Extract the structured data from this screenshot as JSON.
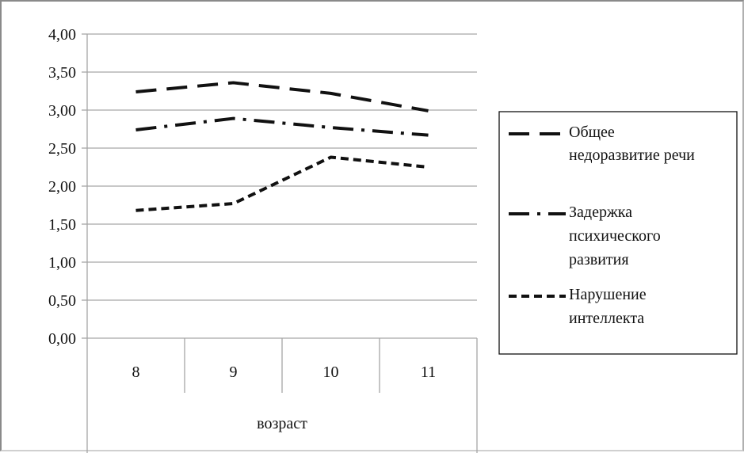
{
  "chart_data": {
    "type": "line",
    "x_categories": [
      "8",
      "9",
      "10",
      "11"
    ],
    "xlabel": "возраст",
    "ylabel": "",
    "ylim": [
      0,
      4
    ],
    "y_ticks": [
      "0,00",
      "0,50",
      "1,00",
      "1,50",
      "2,00",
      "2,50",
      "3,00",
      "3,50",
      "4,00"
    ],
    "grid": "horizontal",
    "legend_position": "right",
    "series": [
      {
        "name_lines": [
          "Общее",
          "недоразвитие речи"
        ],
        "values": [
          3.24,
          3.36,
          3.22,
          2.99
        ],
        "dash": "long-dash",
        "color": "#111111"
      },
      {
        "name_lines": [
          "Задержка",
          "психического",
          "развития"
        ],
        "values": [
          2.74,
          2.89,
          2.77,
          2.67
        ],
        "dash": "dash-dot",
        "color": "#111111"
      },
      {
        "name_lines": [
          "Нарушение",
          "интеллекта"
        ],
        "values": [
          1.68,
          1.77,
          2.38,
          2.25
        ],
        "dash": "short-dash",
        "color": "#111111"
      }
    ]
  }
}
